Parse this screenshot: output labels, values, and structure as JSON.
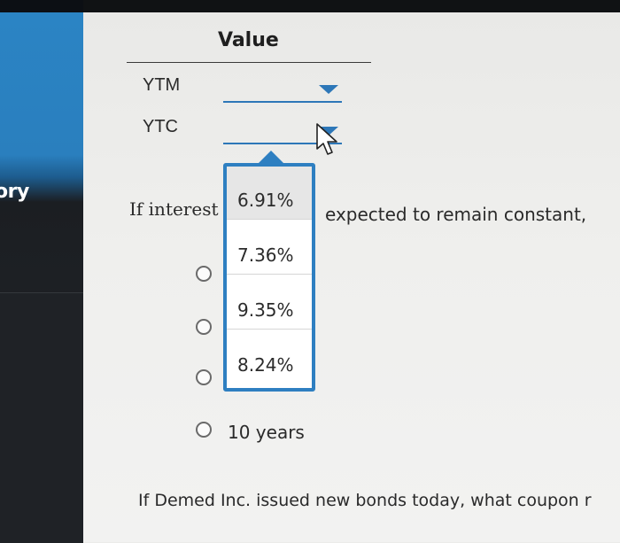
{
  "sidebar": {
    "label": "ory"
  },
  "table": {
    "column_header": "Value",
    "rows": [
      {
        "label": "YTM",
        "selected": ""
      },
      {
        "label": "YTC",
        "selected": ""
      }
    ]
  },
  "dropdown": {
    "options": [
      "6.91%",
      "7.36%",
      "9.35%",
      "8.24%"
    ],
    "highlighted_index": 0
  },
  "question": {
    "text_left": "If interest",
    "text_right": "expected to remain constant, "
  },
  "radio_options": [
    {
      "label": ""
    },
    {
      "label": ""
    },
    {
      "label": ""
    },
    {
      "label": "10 years"
    }
  ],
  "next_question": {
    "text": "If Demed Inc. issued new bonds today, what coupon r"
  },
  "colors": {
    "accent": "#2e7fc1",
    "sidebar_blue": "#2b84c4",
    "sidebar_dark": "#1f2226"
  },
  "icons": {
    "select_caret": "caret-down-icon",
    "pointer": "mouse-pointer-icon"
  }
}
